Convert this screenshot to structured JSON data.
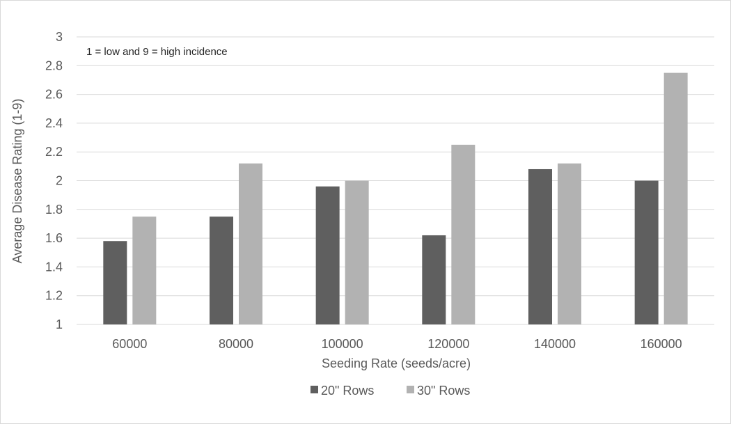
{
  "chart_data": {
    "type": "bar",
    "categories": [
      "60000",
      "80000",
      "100000",
      "120000",
      "140000",
      "160000"
    ],
    "series": [
      {
        "name": "20\" Rows",
        "values": [
          1.58,
          1.75,
          1.96,
          1.62,
          2.08,
          2.0
        ],
        "color": "#5f5f5f"
      },
      {
        "name": "30\" Rows",
        "values": [
          1.75,
          2.12,
          2.0,
          2.25,
          2.12,
          2.75
        ],
        "color": "#b2b2b2"
      }
    ],
    "title": "",
    "xlabel": "Seeding Rate (seeds/acre)",
    "ylabel": "Average Disease Rating (1-9)",
    "ylim": [
      1,
      3
    ],
    "yticks": [
      "1",
      "1.2",
      "1.4",
      "1.6",
      "1.8",
      "2",
      "2.2",
      "2.4",
      "2.6",
      "2.8",
      "3"
    ],
    "annotation": "1 = low and 9 = high incidence",
    "grid": true,
    "legend": "bottom"
  },
  "colors": {
    "gridline": "#d9d9d9",
    "series_20": "#5f5f5f",
    "series_30": "#b2b2b2"
  }
}
